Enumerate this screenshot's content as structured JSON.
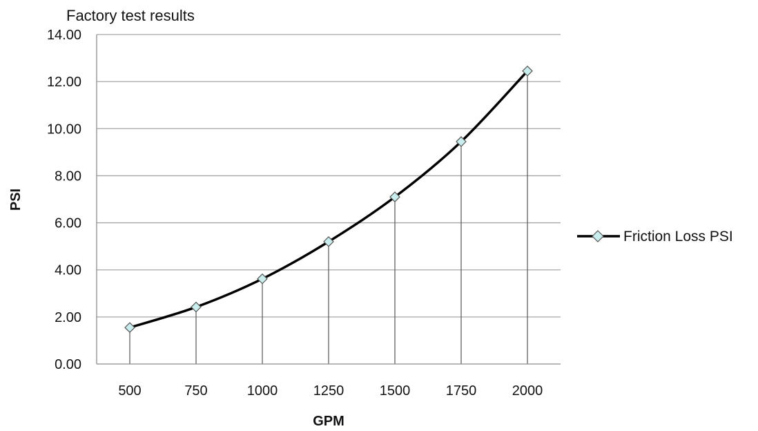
{
  "chart_data": {
    "type": "line",
    "title": "Factory test results",
    "xlabel": "GPM",
    "ylabel": "PSI",
    "categories": [
      "500",
      "750",
      "1000",
      "1250",
      "1500",
      "1750",
      "2000"
    ],
    "series": [
      {
        "name": "Friction Loss PSI",
        "values": [
          1.55,
          2.42,
          3.62,
          5.2,
          7.1,
          9.45,
          12.45
        ],
        "color": "#000000",
        "marker": "diamond",
        "marker_color": "#c9ecec"
      }
    ],
    "ylim": [
      0,
      14
    ],
    "yticks": [
      "0.00",
      "2.00",
      "4.00",
      "6.00",
      "8.00",
      "10.00",
      "12.00",
      "14.00"
    ],
    "grid": true,
    "drop_lines": true,
    "smooth": true,
    "legend_position": "right"
  }
}
